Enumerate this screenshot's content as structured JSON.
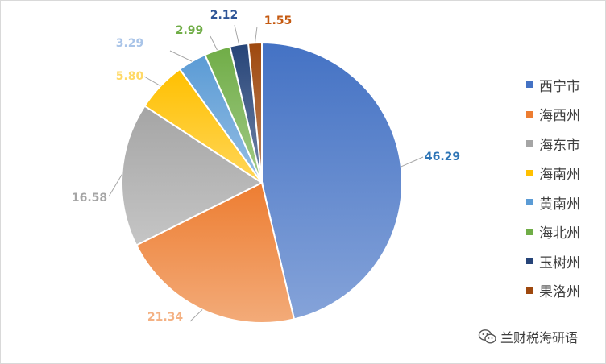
{
  "chart_data": {
    "type": "pie",
    "categories": [
      "西宁市",
      "海西州",
      "海东市",
      "海南州",
      "黄南州",
      "海北州",
      "玉树州",
      "果洛州"
    ],
    "values": [
      46.29,
      21.34,
      16.58,
      5.8,
      3.29,
      2.99,
      2.12,
      1.55
    ],
    "value_labels": [
      "46.29",
      "21.34",
      "16.58",
      "5.80",
      "3.29",
      "2.99",
      "2.12",
      "1.55"
    ],
    "colors": [
      "#4472c4",
      "#ed7d31",
      "#a5a5a5",
      "#ffc000",
      "#5b9bd5",
      "#70ad47",
      "#264478",
      "#9e480e"
    ],
    "label_colors": [
      "#2e75b6",
      "#f4b183",
      "#a5a5a5",
      "#ffd966",
      "#a9c4e8",
      "#70ad47",
      "#2f5597",
      "#c55a11"
    ],
    "start_angle_deg": 0,
    "direction": "clockwise",
    "legend_position": "right",
    "title": ""
  },
  "watermark": {
    "icon": "wechat-icon",
    "text": "兰财税海研语"
  }
}
